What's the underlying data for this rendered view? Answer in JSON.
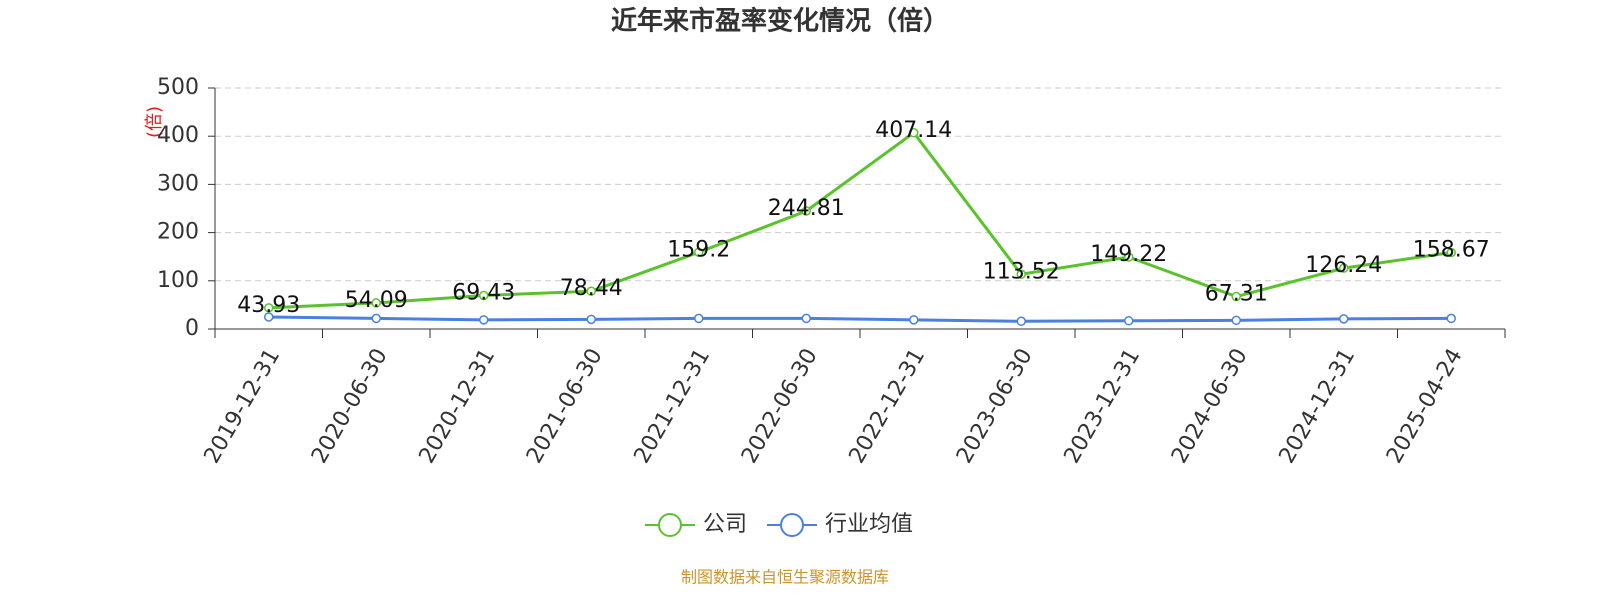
{
  "chart_data": {
    "type": "line",
    "title": "近年来市盈率变化情况（倍）",
    "y_label": "(倍)",
    "source": "制图数据来自恒生聚源数据库",
    "categories": [
      "2019-12-31",
      "2020-06-30",
      "2020-12-31",
      "2021-06-30",
      "2021-12-31",
      "2022-06-30",
      "2022-12-31",
      "2023-06-30",
      "2023-12-31",
      "2024-06-30",
      "2024-12-31",
      "2025-04-24"
    ],
    "series": [
      {
        "name": "公司",
        "color": "#5ac32b",
        "values": [
          43.93,
          54.09,
          69.43,
          78.44,
          159.2,
          244.81,
          407.14,
          113.52,
          149.22,
          67.31,
          126.24,
          158.67
        ]
      },
      {
        "name": "行业均值",
        "color": "#4a80e0",
        "values": [
          25,
          22,
          19,
          20,
          22,
          22,
          19,
          16,
          17,
          18,
          21,
          22
        ]
      }
    ],
    "ylim": [
      0,
      500
    ],
    "yticks": [
      0,
      100,
      200,
      300,
      400,
      500
    ],
    "grid": true
  }
}
